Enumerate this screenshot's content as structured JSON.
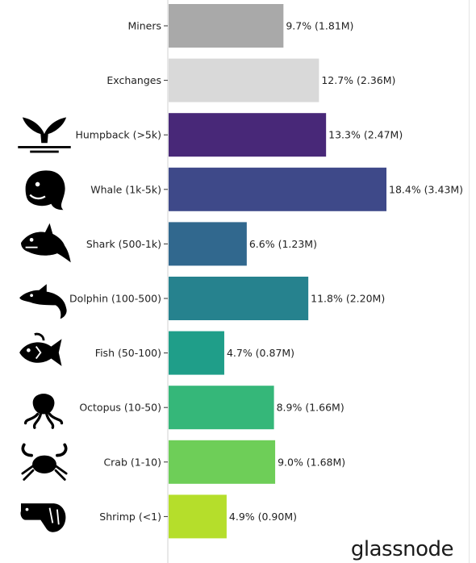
{
  "chart_data": {
    "type": "bar",
    "orientation": "horizontal",
    "categories": [
      "Miners",
      "Exchanges",
      "Humpback (>5k)",
      "Whale (1k-5k)",
      "Shark (500-1k)",
      "Dolphin (100-500)",
      "Fish (50-100)",
      "Octopus (10-50)",
      "Crab (1-10)",
      "Shrimp (<1)"
    ],
    "values": [
      9.7,
      12.7,
      13.3,
      18.4,
      6.6,
      11.8,
      4.7,
      8.9,
      9.0,
      4.9
    ],
    "data_labels": [
      "9.7% (1.81M)",
      "12.7% (2.36M)",
      "13.3% (2.47M)",
      "18.4% (3.43M)",
      "6.6% (1.23M)",
      "11.8% (2.20M)",
      "4.7% (0.87M)",
      "8.9% (1.66M)",
      "9.0% (1.68M)",
      "4.9% (0.90M)"
    ],
    "colors": [
      "#a9a9a9",
      "#d9d9d9",
      "#482878",
      "#3e4989",
      "#31688e",
      "#26828e",
      "#1f9e89",
      "#35b779",
      "#6ece58",
      "#b5de2b"
    ],
    "xlim": [
      0,
      20
    ],
    "grid": false,
    "legend": "none"
  },
  "icons": [
    "",
    "",
    "whale-tail-icon",
    "whale-icon",
    "shark-icon",
    "dolphin-icon",
    "fish-icon",
    "octopus-icon",
    "crab-icon",
    "shrimp-icon"
  ],
  "watermark": "glassnode"
}
